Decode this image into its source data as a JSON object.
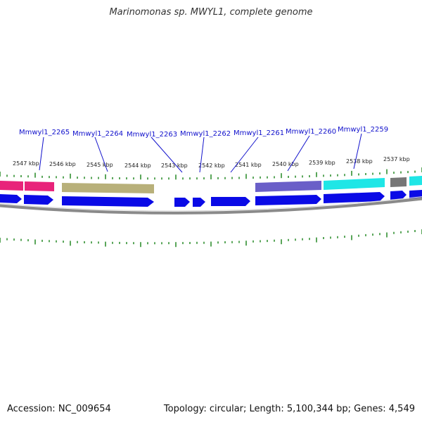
{
  "title": "Marinomonas sp. MWYL1, complete genome",
  "accession": "Accession: NC_009654",
  "summary": "Topology: circular; Length: 5,100,344 bp; Genes: 4,549",
  "position_labels": [
    {
      "text": "2547 kbp",
      "kbp": 2547
    },
    {
      "text": "2546 kbp",
      "kbp": 2546
    },
    {
      "text": "2545 kbp",
      "kbp": 2545
    },
    {
      "text": "2544 kbp",
      "kbp": 2544
    },
    {
      "text": "2543 kbp",
      "kbp": 2543
    },
    {
      "text": "2542 kbp",
      "kbp": 2542
    },
    {
      "text": "2541 kbp",
      "kbp": 2541
    },
    {
      "text": "2540 kbp",
      "kbp": 2540
    },
    {
      "text": "2539 kbp",
      "kbp": 2539
    },
    {
      "text": "2538 kbp",
      "kbp": 2538
    },
    {
      "text": "2537 kbp",
      "kbp": 2537
    }
  ],
  "gene_labels": [
    {
      "text": "Mmwyl1_2265"
    },
    {
      "text": "Mmwyl1_2264"
    },
    {
      "text": "Mmwyl1_2263"
    },
    {
      "text": "Mmwyl1_2262"
    },
    {
      "text": "Mmwyl1_2261"
    },
    {
      "text": "Mmwyl1_2260"
    },
    {
      "text": "Mmwyl1_2259"
    }
  ],
  "colors": {
    "label_blue": "#1111cc",
    "cds_blue": "#0a0ae6",
    "tick_green": "#228822",
    "backbone": "#8a8a8a",
    "cog_magenta": "#e8237a",
    "cog_olive": "#b8b07a",
    "cog_purple": "#6a5fc8",
    "cog_cyan": "#1fe6e6",
    "cog_gray": "#777777"
  }
}
